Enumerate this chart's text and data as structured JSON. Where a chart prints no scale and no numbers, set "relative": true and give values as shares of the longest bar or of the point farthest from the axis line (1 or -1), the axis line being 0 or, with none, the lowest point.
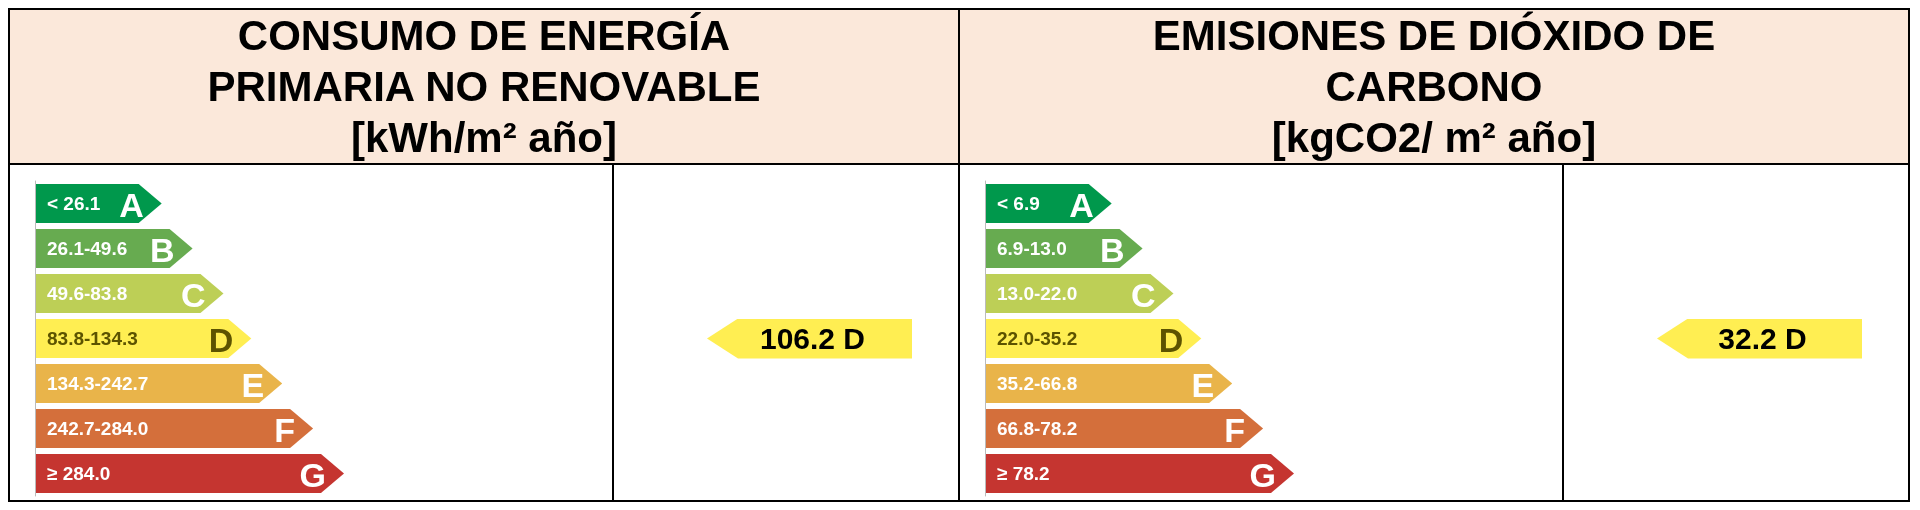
{
  "chart_data": [
    {
      "type": "bar",
      "orientation": "horizontal",
      "relative": true,
      "tick_labels": "y",
      "title": "CONSUMO DE ENERGÍA PRIMARIA NO RENOVABLE",
      "subtitle": "[kWh/m² año]",
      "categories": [
        "< 26.1",
        "26.1-49.6",
        "49.6-83.8",
        "83.8-134.3",
        "134.3-242.7",
        "242.7-284.0",
        "≥ 284.0"
      ],
      "values": [
        0.41,
        0.51,
        0.61,
        0.7,
        0.8,
        0.9,
        1
      ],
      "colors": [
        "#00984c",
        "#67ab50",
        "#bdcf56",
        "#ffee52",
        "#e9b44a",
        "#d46f3b",
        "#c53530"
      ],
      "annotations": [
        {
          "text": "A",
          "x": 0.41,
          "y": "< 26.1"
        },
        {
          "text": "B",
          "x": 0.51,
          "y": "26.1-49.6"
        },
        {
          "text": "C",
          "x": 0.61,
          "y": "49.6-83.8"
        },
        {
          "text": "D",
          "x": 0.7,
          "y": "83.8-134.3"
        },
        {
          "text": "E",
          "x": 0.8,
          "y": "134.3-242.7"
        },
        {
          "text": "F",
          "x": 0.9,
          "y": "242.7-284.0"
        },
        {
          "text": "G",
          "x": 1,
          "y": "≥ 284.0"
        },
        "106.2 D"
      ]
    },
    {
      "type": "bar",
      "orientation": "horizontal",
      "relative": true,
      "tick_labels": "y",
      "title": "EMISIONES DE DIÓXIDO DE CARBONO",
      "subtitle": "[kgCO2/ m² año]",
      "categories": [
        "< 6.9",
        "6.9-13.0",
        "13.0-22.0",
        "22.0-35.2",
        "35.2-66.8",
        "66.8-78.2",
        "≥ 78.2"
      ],
      "values": [
        0.41,
        0.51,
        0.61,
        0.7,
        0.8,
        0.9,
        1
      ],
      "colors": [
        "#00984c",
        "#67ab50",
        "#bdcf56",
        "#ffee52",
        "#e9b44a",
        "#d46f3b",
        "#c53530"
      ],
      "annotations": [
        {
          "text": "A",
          "x": 0.41,
          "y": "< 6.9"
        },
        {
          "text": "B",
          "x": 0.51,
          "y": "6.9-13.0"
        },
        {
          "text": "C",
          "x": 0.61,
          "y": "13.0-22.0"
        },
        {
          "text": "D",
          "x": 0.7,
          "y": "22.0-35.2"
        },
        {
          "text": "E",
          "x": 0.8,
          "y": "35.2-66.8"
        },
        {
          "text": "F",
          "x": 0.9,
          "y": "66.8-78.2"
        },
        {
          "text": "G",
          "x": 1,
          "y": "≥ 78.2"
        },
        "32.2 D"
      ]
    }
  ]
}
